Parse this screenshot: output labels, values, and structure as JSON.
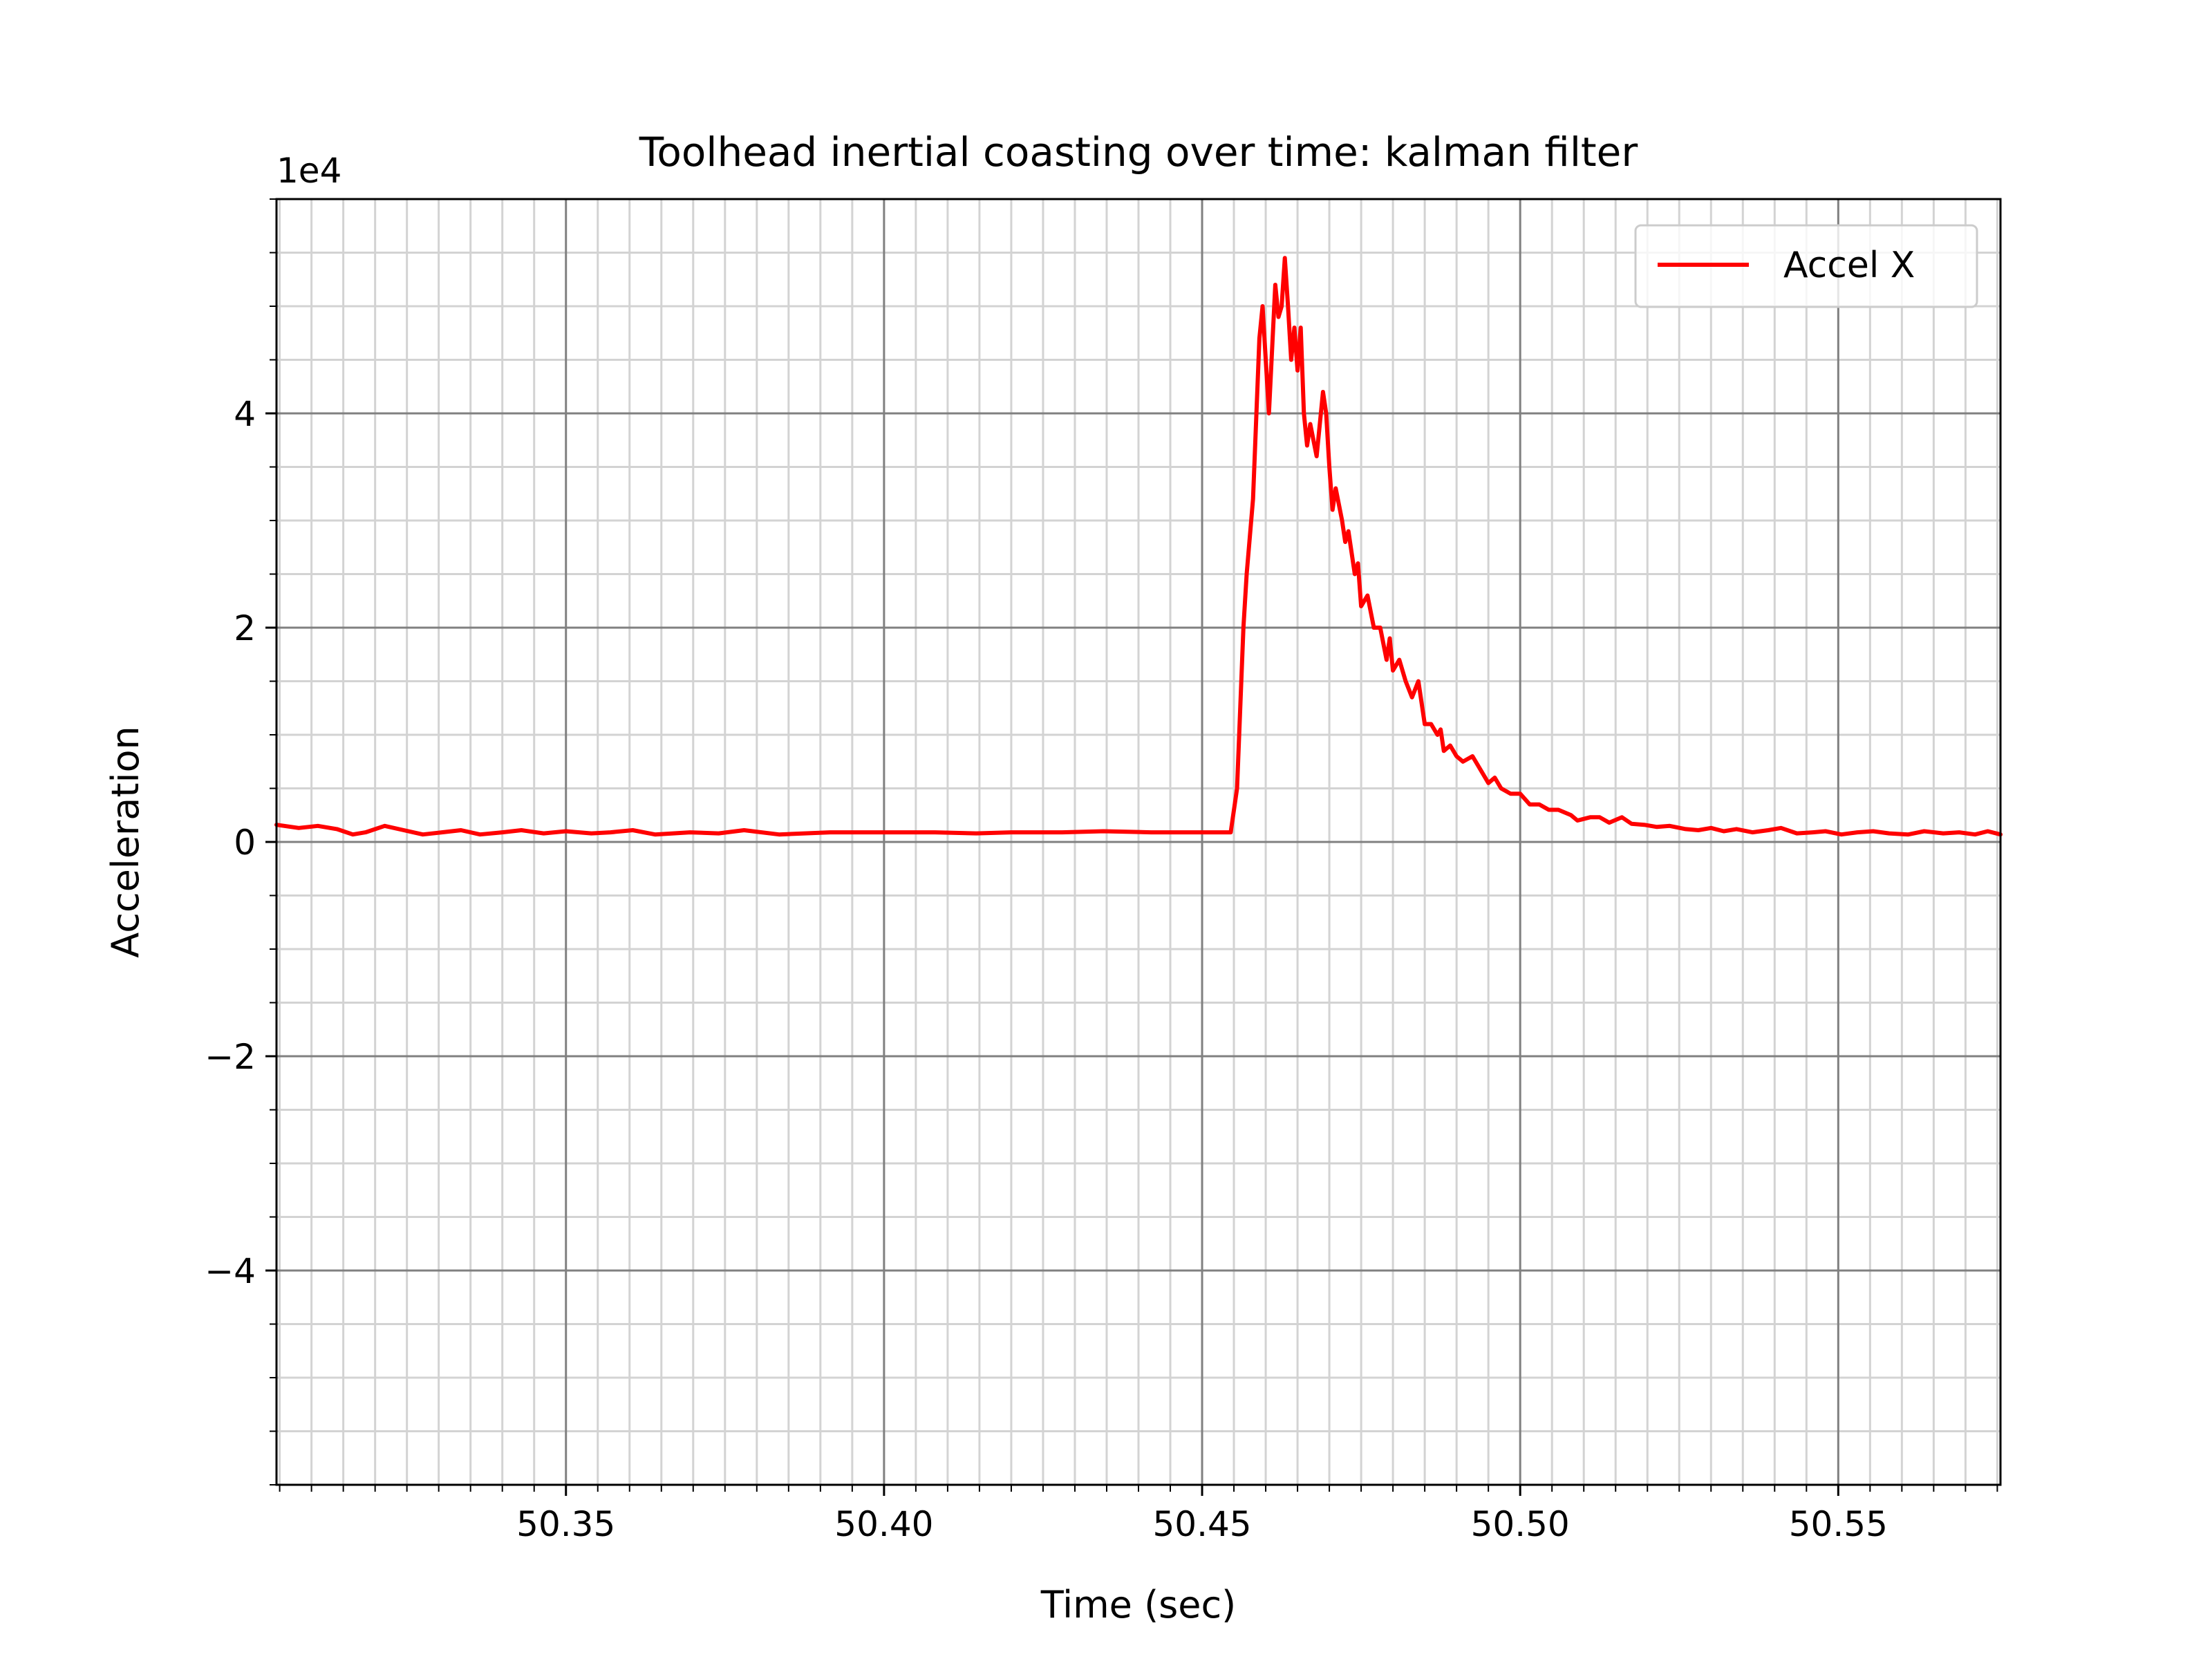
{
  "chart_data": {
    "type": "line",
    "title": "Toolhead inertial coasting over time: kalman filter",
    "xlabel": "Time (sec)",
    "ylabel": "Acceleration",
    "y_offset_text": "1e4",
    "xlim": [
      50.3045,
      50.5755
    ],
    "ylim": [
      -60000,
      60000
    ],
    "x_ticks": [
      50.35,
      50.4,
      50.45,
      50.5,
      50.55
    ],
    "x_tick_labels": [
      "50.35",
      "50.40",
      "50.45",
      "50.50",
      "50.55"
    ],
    "x_minor_step": 0.005,
    "y_ticks": [
      -40000,
      -20000,
      0,
      20000,
      40000
    ],
    "y_tick_labels": [
      "−4",
      "−2",
      "0",
      "2",
      "4"
    ],
    "y_minor_step": 5000,
    "grid": true,
    "legend_position": "upper right",
    "series": [
      {
        "name": "Accel X",
        "color": "#ff0000",
        "x": [
          50.3045,
          50.308,
          50.311,
          50.314,
          50.3165,
          50.3185,
          50.3215,
          50.3245,
          50.3275,
          50.3305,
          50.3335,
          50.3365,
          50.34,
          50.343,
          50.3465,
          50.35,
          50.354,
          50.357,
          50.3605,
          50.364,
          50.3695,
          50.374,
          50.378,
          50.3835,
          50.3915,
          50.4,
          50.408,
          50.4145,
          50.42,
          50.428,
          50.4345,
          50.442,
          50.447,
          50.4515,
          50.4545,
          50.4555,
          50.4565,
          50.457,
          50.458,
          50.459,
          50.4595,
          50.4605,
          50.4615,
          50.462,
          50.4625,
          50.463,
          50.4635,
          50.464,
          50.4645,
          50.465,
          50.4655,
          50.466,
          50.4665,
          50.467,
          50.468,
          50.469,
          50.4695,
          50.47,
          50.4705,
          50.471,
          50.472,
          50.4725,
          50.473,
          50.474,
          50.4745,
          50.475,
          50.476,
          50.477,
          50.478,
          50.479,
          50.4795,
          50.48,
          50.481,
          50.482,
          50.483,
          50.484,
          50.485,
          50.486,
          50.487,
          50.4875,
          50.488,
          50.489,
          50.49,
          50.491,
          50.4925,
          50.4935,
          50.495,
          50.496,
          50.497,
          50.4985,
          50.5,
          50.5015,
          50.503,
          50.5045,
          50.506,
          50.508,
          50.509,
          50.511,
          50.5125,
          50.514,
          50.516,
          50.5175,
          50.5195,
          50.5215,
          50.5235,
          50.526,
          50.528,
          50.53,
          50.532,
          50.534,
          50.5365,
          50.539,
          50.541,
          50.5435,
          50.546,
          50.548,
          50.5505,
          50.553,
          50.5555,
          50.558,
          50.561,
          50.5635,
          50.5665,
          50.569,
          50.5715,
          50.5735,
          50.5755
        ],
        "y": [
          1600,
          1300,
          1500,
          1200,
          700,
          900,
          1500,
          1100,
          700,
          900,
          1100,
          700,
          900,
          1100,
          800,
          1000,
          800,
          900,
          1100,
          700,
          900,
          800,
          1100,
          700,
          900,
          900,
          900,
          800,
          900,
          900,
          1000,
          900,
          900,
          900,
          900,
          5000,
          20000,
          25000,
          32000,
          47000,
          50000,
          40000,
          52000,
          49000,
          50000,
          54500,
          50000,
          45000,
          48000,
          44000,
          48000,
          40000,
          37000,
          39000,
          36000,
          42000,
          40000,
          35000,
          31000,
          33000,
          30000,
          28000,
          29000,
          25000,
          26000,
          22000,
          23000,
          20000,
          20000,
          17000,
          19000,
          16000,
          17000,
          15000,
          13500,
          15000,
          11000,
          11000,
          10000,
          10500,
          8500,
          9000,
          8000,
          7500,
          8000,
          7000,
          5500,
          6000,
          5000,
          4500,
          4500,
          3500,
          3500,
          3000,
          3000,
          2500,
          2000,
          2300,
          2300,
          1800,
          2300,
          1700,
          1600,
          1400,
          1500,
          1200,
          1100,
          1300,
          1000,
          1200,
          900,
          1100,
          1300,
          800,
          900,
          1000,
          700,
          900,
          1000,
          800,
          700,
          1000,
          800,
          900,
          700,
          1000,
          700
        ]
      }
    ]
  }
}
